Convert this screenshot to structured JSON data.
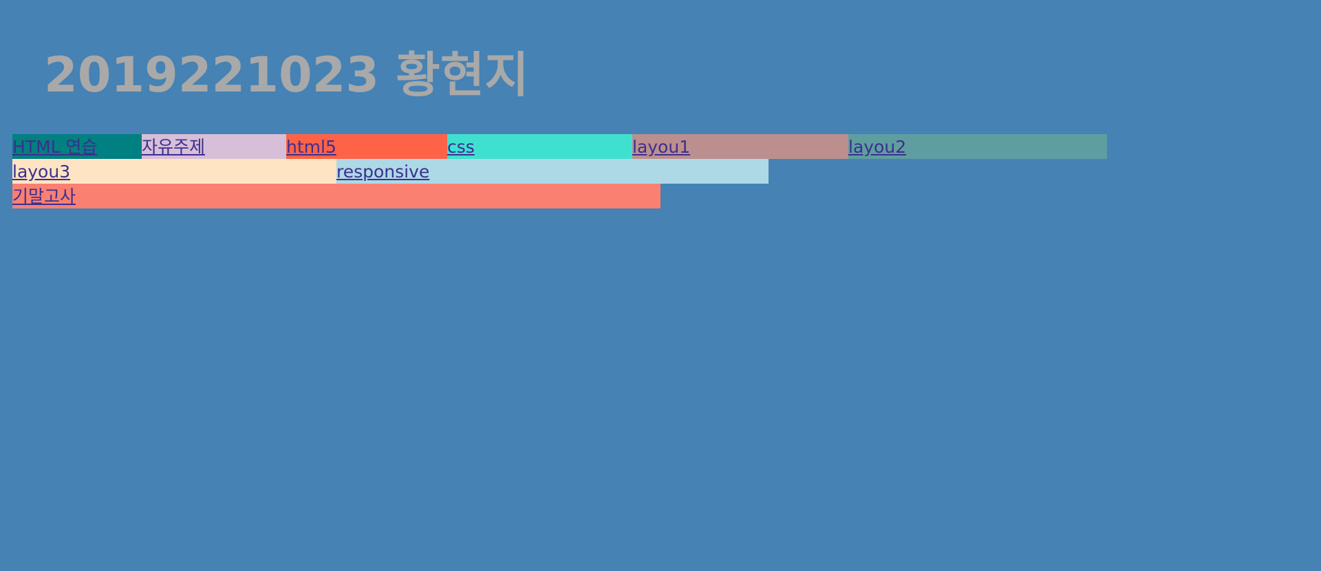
{
  "title": "2019221023 황현지",
  "nav": {
    "row1": [
      {
        "label": "HTML 연습",
        "color": "#008080"
      },
      {
        "label": "자유주제",
        "color": "#d8bfd8"
      },
      {
        "label": "html5",
        "color": "#ff6347"
      },
      {
        "label": "css",
        "color": "#40e0d0"
      },
      {
        "label": "layou1",
        "color": "#bc8f8f"
      },
      {
        "label": "layou2",
        "color": "#5f9ea0"
      }
    ],
    "row2": [
      {
        "label": "layou3",
        "color": "#ffe4c4"
      },
      {
        "label": "responsive",
        "color": "#add8e6"
      }
    ],
    "row3": [
      {
        "label": "기말고사",
        "color": "#fa8072"
      }
    ]
  }
}
